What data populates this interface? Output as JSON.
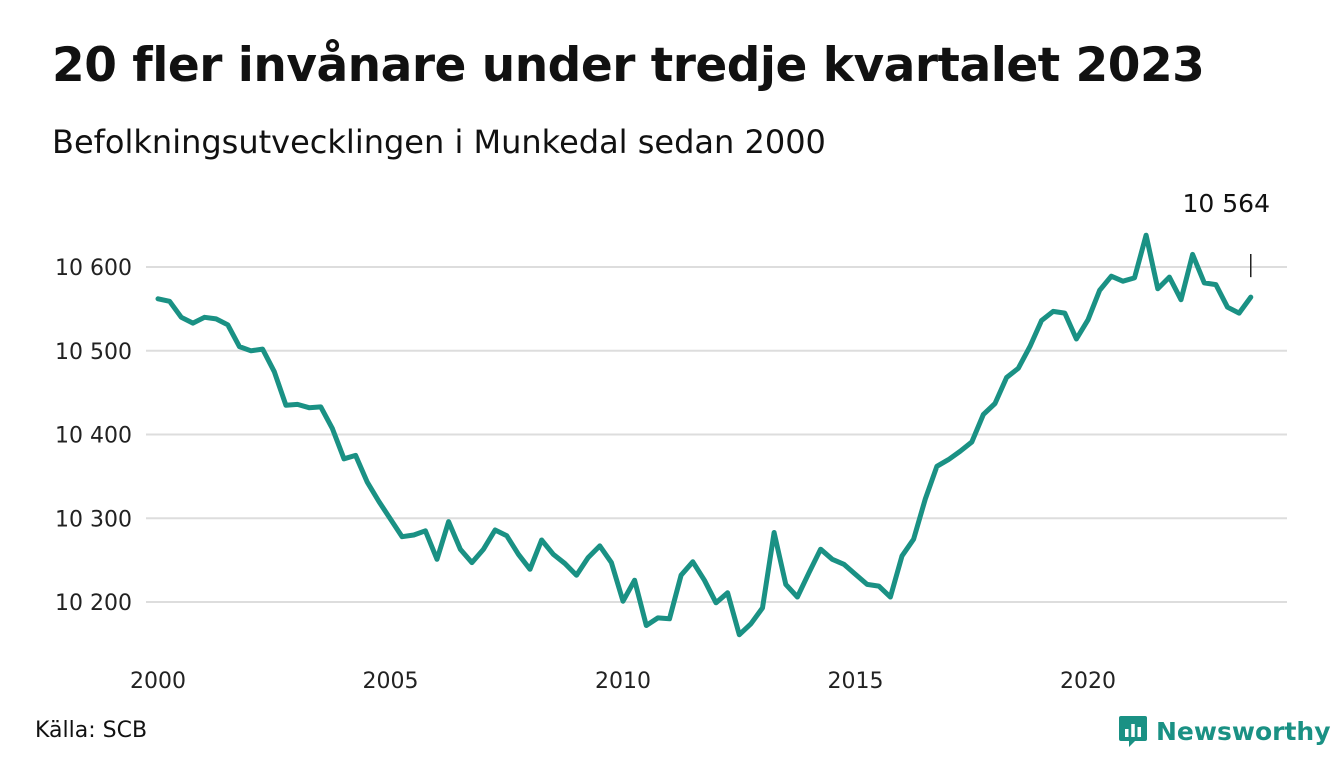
{
  "colors": {
    "line": "#1a9184",
    "grid": "#dddddd",
    "brand": "#1a9184"
  },
  "header": {
    "title": "20 fler invånare under tredje kvartalet 2023",
    "subtitle": "Befolkningsutvecklingen i Munkedal sedan 2000"
  },
  "footer": {
    "source": "Källa: SCB",
    "brand_name": "Newsworthy",
    "brand_icon": "newsworthy-logo-icon"
  },
  "chart_data": {
    "type": "line",
    "title": "20 fler invånare under tredje kvartalet 2023",
    "subtitle": "Befolkningsutvecklingen i Munkedal sedan 2000",
    "xlabel": "",
    "ylabel": "",
    "xlim": [
      2000,
      2023.75
    ],
    "ylim": [
      10140,
      10660
    ],
    "grid": true,
    "legend": "none",
    "x_ticks": [
      {
        "value": 2000,
        "label": "2000"
      },
      {
        "value": 2005,
        "label": "2005"
      },
      {
        "value": 2010,
        "label": "2010"
      },
      {
        "value": 2015,
        "label": "2015"
      },
      {
        "value": 2020,
        "label": "2020"
      }
    ],
    "y_ticks": [
      {
        "value": 10200,
        "label": "10 200"
      },
      {
        "value": 10300,
        "label": "10 300"
      },
      {
        "value": 10400,
        "label": "10 400"
      },
      {
        "value": 10500,
        "label": "10 500"
      },
      {
        "value": 10600,
        "label": "10 600"
      }
    ],
    "end_label": "10 564",
    "x": [
      2000.0,
      2000.25,
      2000.5,
      2000.75,
      2001.0,
      2001.25,
      2001.5,
      2001.75,
      2002.0,
      2002.25,
      2002.5,
      2002.75,
      2003.0,
      2003.25,
      2003.5,
      2003.75,
      2004.0,
      2004.25,
      2004.5,
      2004.75,
      2005.0,
      2005.25,
      2005.5,
      2005.75,
      2006.0,
      2006.25,
      2006.5,
      2006.75,
      2007.0,
      2007.25,
      2007.5,
      2007.75,
      2008.0,
      2008.25,
      2008.5,
      2008.75,
      2009.0,
      2009.25,
      2009.5,
      2009.75,
      2010.0,
      2010.25,
      2010.5,
      2010.75,
      2011.0,
      2011.25,
      2011.5,
      2011.75,
      2012.0,
      2012.25,
      2012.5,
      2012.75,
      2013.0,
      2013.25,
      2013.5,
      2013.75,
      2014.0,
      2014.25,
      2014.5,
      2014.75,
      2015.0,
      2015.25,
      2015.5,
      2015.75,
      2016.0,
      2016.25,
      2016.5,
      2016.75,
      2017.0,
      2017.25,
      2017.5,
      2017.75,
      2018.0,
      2018.25,
      2018.5,
      2018.75,
      2019.0,
      2019.25,
      2019.5,
      2019.75,
      2020.0,
      2020.25,
      2020.5,
      2020.75,
      2021.0,
      2021.25,
      2021.5,
      2021.75,
      2022.0,
      2022.25,
      2022.5,
      2022.75,
      2023.0,
      2023.25,
      2023.5
    ],
    "series": [
      {
        "values": [
          10562,
          10559,
          10540,
          10533,
          10540,
          10538,
          10531,
          10505,
          10500,
          10502,
          10475,
          10435,
          10436,
          10432,
          10433,
          10407,
          10371,
          10375,
          10343,
          10320,
          10299,
          10278,
          10280,
          10285,
          10251,
          10296,
          10263,
          10247,
          10263,
          10286,
          10279,
          10257,
          10239,
          10274,
          10257,
          10246,
          10232,
          10253,
          10267,
          10247,
          10201,
          10226,
          10172,
          10181,
          10180,
          10232,
          10248,
          10226,
          10199,
          10211,
          10161,
          10174,
          10193,
          10283,
          10221,
          10206,
          10235,
          10263,
          10251,
          10245,
          10233,
          10221,
          10219,
          10206,
          10255,
          10275,
          10323,
          10362,
          10370,
          10380,
          10391,
          10424,
          10437,
          10468,
          10479,
          10505,
          10536,
          10547,
          10545,
          10514,
          10537,
          10572,
          10589,
          10583,
          10587,
          10638,
          10574,
          10588,
          10561,
          10615,
          10581,
          10579,
          10552,
          10545,
          10564
        ]
      }
    ]
  }
}
